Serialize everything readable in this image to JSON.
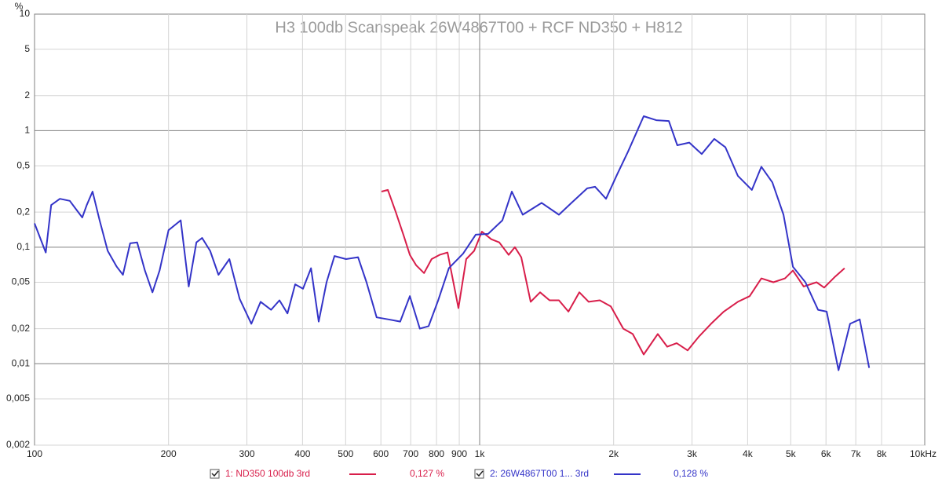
{
  "chart_data": {
    "type": "line",
    "title": "H3 100db Scanspeak 26W4867T00 + RCF ND350 + H812",
    "y_label": "%",
    "x_log": true,
    "y_log": true,
    "grid": true,
    "xlim": [
      100,
      10000
    ],
    "ylim": [
      0.002,
      10
    ],
    "xticks": [
      100,
      200,
      300,
      400,
      500,
      600,
      700,
      800,
      900,
      {
        "value": 1000,
        "label": "1k"
      },
      {
        "value": 2000,
        "label": "2k"
      },
      {
        "value": 3000,
        "label": "3k"
      },
      {
        "value": 4000,
        "label": "4k"
      },
      {
        "value": 5000,
        "label": "5k"
      },
      {
        "value": 6000,
        "label": "6k"
      },
      {
        "value": 7000,
        "label": "7k"
      },
      {
        "value": 8000,
        "label": "8k"
      },
      {
        "value": 10000,
        "label": "10kHz"
      }
    ],
    "yticks": [
      10,
      5,
      2,
      1,
      {
        "value": 0.5,
        "label": "0,5"
      },
      {
        "value": 0.2,
        "label": "0,2"
      },
      {
        "value": 0.1,
        "label": "0,1"
      },
      {
        "value": 0.05,
        "label": "0,05"
      },
      {
        "value": 0.02,
        "label": "0,02"
      },
      {
        "value": 0.01,
        "label": "0,01"
      },
      {
        "value": 0.005,
        "label": "0,005"
      },
      {
        "value": 0.002,
        "label": "0,002"
      }
    ],
    "series": [
      {
        "name": "1: ND350 100db 3rd",
        "legend_value": "0,127 %",
        "color": "#d81e4a",
        "x": [
          602,
          622,
          648,
          675,
          697,
          720,
          750,
          780,
          813,
          847,
          896,
          933,
          972,
          1012,
          1062,
          1107,
          1162,
          1200,
          1240,
          1302,
          1367,
          1436,
          1507,
          1583,
          1675,
          1758,
          1862,
          1971,
          2103,
          2208,
          2337,
          2513,
          2640,
          2771,
          2933,
          3105,
          3311,
          3536,
          3802,
          4043,
          4296,
          4571,
          4853,
          5057,
          5346,
          5715,
          5943,
          6295,
          6607
        ],
        "values": [
          0.3,
          0.31,
          0.2,
          0.126,
          0.086,
          0.07,
          0.06,
          0.079,
          0.086,
          0.09,
          0.03,
          0.079,
          0.093,
          0.136,
          0.117,
          0.11,
          0.086,
          0.1,
          0.082,
          0.034,
          0.041,
          0.035,
          0.035,
          0.028,
          0.041,
          0.034,
          0.035,
          0.031,
          0.02,
          0.018,
          0.012,
          0.018,
          0.014,
          0.015,
          0.013,
          0.017,
          0.022,
          0.028,
          0.034,
          0.038,
          0.054,
          0.05,
          0.054,
          0.063,
          0.046,
          0.05,
          0.045,
          0.056,
          0.066
        ]
      },
      {
        "name": "2: 26W4867T00 1... 3rd",
        "legend_value": "0,128 %",
        "color": "#3434c8",
        "x": [
          100,
          106,
          109,
          114,
          120,
          123,
          128,
          131,
          135,
          140,
          146,
          153,
          158,
          164,
          170,
          177,
          184,
          191,
          200,
          213,
          222,
          231,
          238,
          248,
          259,
          274,
          289,
          307,
          322,
          340,
          355,
          370,
          385,
          401,
          418,
          435,
          453,
          472,
          501,
          533,
          557,
          587,
          624,
          663,
          697,
          734,
          768,
          807,
          853,
          918,
          980,
          1045,
          1125,
          1181,
          1250,
          1378,
          1507,
          1608,
          1744,
          1817,
          1923,
          2036,
          2154,
          2337,
          2494,
          2661,
          2780,
          2958,
          3155,
          3367,
          3566,
          3802,
          4090,
          4296,
          4546,
          4817,
          5057,
          5395,
          5758,
          6021,
          6402,
          6797,
          7145,
          7502
        ],
        "values": [
          0.16,
          0.09,
          0.23,
          0.26,
          0.25,
          0.22,
          0.18,
          0.23,
          0.3,
          0.17,
          0.093,
          0.068,
          0.058,
          0.108,
          0.11,
          0.063,
          0.041,
          0.063,
          0.14,
          0.17,
          0.046,
          0.11,
          0.12,
          0.093,
          0.058,
          0.079,
          0.036,
          0.022,
          0.034,
          0.029,
          0.035,
          0.027,
          0.048,
          0.044,
          0.066,
          0.023,
          0.05,
          0.084,
          0.079,
          0.082,
          0.05,
          0.025,
          0.024,
          0.023,
          0.038,
          0.02,
          0.021,
          0.035,
          0.066,
          0.088,
          0.128,
          0.13,
          0.17,
          0.3,
          0.19,
          0.24,
          0.19,
          0.24,
          0.32,
          0.33,
          0.26,
          0.42,
          0.66,
          1.33,
          1.23,
          1.21,
          0.75,
          0.79,
          0.63,
          0.85,
          0.72,
          0.41,
          0.31,
          0.49,
          0.36,
          0.19,
          0.068,
          0.05,
          0.029,
          0.028,
          0.0088,
          0.022,
          0.024,
          0.0092
        ]
      }
    ]
  }
}
